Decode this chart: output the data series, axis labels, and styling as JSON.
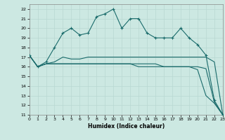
{
  "xlabel": "Humidex (Indice chaleur)",
  "xlim": [
    0,
    23
  ],
  "ylim": [
    11,
    22.5
  ],
  "yticks": [
    11,
    12,
    13,
    14,
    15,
    16,
    17,
    18,
    19,
    20,
    21,
    22
  ],
  "xticks": [
    0,
    1,
    2,
    3,
    4,
    5,
    6,
    7,
    8,
    9,
    10,
    11,
    12,
    13,
    14,
    15,
    16,
    17,
    18,
    19,
    20,
    21,
    22,
    23
  ],
  "bg_color": "#cce8e2",
  "line_color": "#1a6b6b",
  "grid_color": "#b8d8d2",
  "line1_y": [
    17.2,
    16.0,
    16.5,
    18.0,
    19.5,
    20.0,
    19.3,
    19.5,
    21.2,
    21.5,
    22.0,
    20.0,
    21.0,
    21.0,
    19.5,
    19.0,
    19.0,
    19.0,
    20.0,
    19.0,
    18.3,
    17.2,
    12.5,
    11.0
  ],
  "line2_y": [
    17.2,
    16.0,
    16.3,
    16.5,
    17.0,
    16.8,
    16.8,
    17.0,
    17.0,
    17.0,
    17.0,
    17.0,
    17.0,
    17.0,
    17.0,
    17.0,
    17.0,
    17.0,
    17.0,
    17.0,
    17.0,
    17.0,
    16.5,
    11.0
  ],
  "line3_y": [
    17.2,
    16.0,
    16.3,
    16.3,
    16.3,
    16.3,
    16.3,
    16.3,
    16.3,
    16.3,
    16.3,
    16.3,
    16.3,
    16.3,
    16.3,
    16.3,
    16.0,
    16.0,
    16.0,
    16.0,
    16.0,
    15.8,
    12.3,
    11.0
  ],
  "line4_y": [
    17.2,
    16.0,
    16.3,
    16.3,
    16.3,
    16.3,
    16.3,
    16.3,
    16.3,
    16.3,
    16.3,
    16.3,
    16.3,
    16.0,
    16.0,
    16.0,
    16.0,
    16.0,
    16.0,
    16.0,
    15.7,
    13.0,
    12.2,
    11.0
  ]
}
